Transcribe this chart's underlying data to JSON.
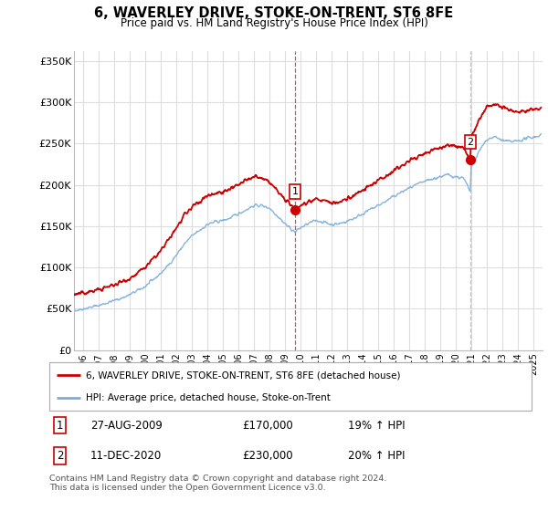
{
  "title": "6, WAVERLEY DRIVE, STOKE-ON-TRENT, ST6 8FE",
  "subtitle": "Price paid vs. HM Land Registry's House Price Index (HPI)",
  "ylabel_ticks": [
    "£0",
    "£50K",
    "£100K",
    "£150K",
    "£200K",
    "£250K",
    "£300K",
    "£350K"
  ],
  "ytick_vals": [
    0,
    50000,
    100000,
    150000,
    200000,
    250000,
    300000,
    350000
  ],
  "ylim": [
    0,
    362000
  ],
  "xlim_start": 1995.4,
  "xlim_end": 2025.6,
  "xtick_years": [
    1996,
    1997,
    1998,
    1999,
    2000,
    2001,
    2002,
    2003,
    2004,
    2005,
    2006,
    2007,
    2008,
    2009,
    2010,
    2011,
    2012,
    2013,
    2014,
    2015,
    2016,
    2017,
    2018,
    2019,
    2020,
    2021,
    2022,
    2023,
    2024,
    2025
  ],
  "sale1_x": 2009.65,
  "sale1_y": 170000,
  "sale1_label": "1",
  "sale2_x": 2020.94,
  "sale2_y": 230000,
  "sale2_label": "2",
  "vline1_x": 2009.65,
  "vline2_x": 2020.94,
  "legend_line1": "6, WAVERLEY DRIVE, STOKE-ON-TRENT, ST6 8FE (detached house)",
  "legend_line2": "HPI: Average price, detached house, Stoke-on-Trent",
  "table_row1": [
    "1",
    "27-AUG-2009",
    "£170,000",
    "19% ↑ HPI"
  ],
  "table_row2": [
    "2",
    "11-DEC-2020",
    "£230,000",
    "20% ↑ HPI"
  ],
  "footer": "Contains HM Land Registry data © Crown copyright and database right 2024.\nThis data is licensed under the Open Government Licence v3.0.",
  "red_color": "#cc0000",
  "blue_color": "#7aaddb",
  "background_color": "#ffffff",
  "grid_color": "#dddddd",
  "hpi_base": [
    [
      1995.0,
      47000
    ],
    [
      1995.5,
      48000
    ],
    [
      1996.0,
      50000
    ],
    [
      1996.5,
      52000
    ],
    [
      1997.0,
      54000
    ],
    [
      1997.5,
      57000
    ],
    [
      1998.0,
      60000
    ],
    [
      1998.5,
      63000
    ],
    [
      1999.0,
      67000
    ],
    [
      1999.5,
      72000
    ],
    [
      2000.0,
      77000
    ],
    [
      2000.5,
      85000
    ],
    [
      2001.0,
      93000
    ],
    [
      2001.5,
      103000
    ],
    [
      2002.0,
      115000
    ],
    [
      2002.5,
      128000
    ],
    [
      2003.0,
      138000
    ],
    [
      2003.5,
      145000
    ],
    [
      2004.0,
      152000
    ],
    [
      2004.5,
      155000
    ],
    [
      2005.0,
      157000
    ],
    [
      2005.5,
      160000
    ],
    [
      2006.0,
      165000
    ],
    [
      2006.5,
      170000
    ],
    [
      2007.0,
      175000
    ],
    [
      2007.5,
      175000
    ],
    [
      2008.0,
      172000
    ],
    [
      2008.5,
      163000
    ],
    [
      2009.0,
      153000
    ],
    [
      2009.5,
      145000
    ],
    [
      2009.65,
      143000
    ],
    [
      2010.0,
      148000
    ],
    [
      2010.5,
      153000
    ],
    [
      2011.0,
      157000
    ],
    [
      2011.5,
      155000
    ],
    [
      2012.0,
      152000
    ],
    [
      2012.5,
      153000
    ],
    [
      2013.0,
      156000
    ],
    [
      2013.5,
      160000
    ],
    [
      2014.0,
      165000
    ],
    [
      2014.5,
      170000
    ],
    [
      2015.0,
      175000
    ],
    [
      2015.5,
      180000
    ],
    [
      2016.0,
      186000
    ],
    [
      2016.5,
      191000
    ],
    [
      2017.0,
      196000
    ],
    [
      2017.5,
      200000
    ],
    [
      2018.0,
      204000
    ],
    [
      2018.5,
      207000
    ],
    [
      2019.0,
      210000
    ],
    [
      2019.5,
      212000
    ],
    [
      2020.0,
      210000
    ],
    [
      2020.5,
      208000
    ],
    [
      2020.94,
      192000
    ],
    [
      2021.0,
      220000
    ],
    [
      2021.5,
      240000
    ],
    [
      2022.0,
      255000
    ],
    [
      2022.5,
      258000
    ],
    [
      2023.0,
      254000
    ],
    [
      2023.5,
      252000
    ],
    [
      2024.0,
      253000
    ],
    [
      2024.5,
      256000
    ],
    [
      2025.0,
      258000
    ],
    [
      2025.5,
      260000
    ]
  ],
  "price_base": [
    [
      1995.0,
      65000
    ],
    [
      1995.5,
      67000
    ],
    [
      1996.0,
      69000
    ],
    [
      1996.5,
      71000
    ],
    [
      1997.0,
      73000
    ],
    [
      1997.5,
      76000
    ],
    [
      1998.0,
      79000
    ],
    [
      1998.5,
      83000
    ],
    [
      1999.0,
      87000
    ],
    [
      1999.5,
      93000
    ],
    [
      2000.0,
      100000
    ],
    [
      2000.5,
      110000
    ],
    [
      2001.0,
      120000
    ],
    [
      2001.5,
      133000
    ],
    [
      2002.0,
      148000
    ],
    [
      2002.5,
      162000
    ],
    [
      2003.0,
      173000
    ],
    [
      2003.5,
      180000
    ],
    [
      2004.0,
      187000
    ],
    [
      2004.5,
      190000
    ],
    [
      2005.0,
      192000
    ],
    [
      2005.5,
      195000
    ],
    [
      2006.0,
      200000
    ],
    [
      2006.5,
      205000
    ],
    [
      2007.0,
      210000
    ],
    [
      2007.5,
      208000
    ],
    [
      2008.0,
      203000
    ],
    [
      2008.5,
      193000
    ],
    [
      2009.0,
      182000
    ],
    [
      2009.5,
      173000
    ],
    [
      2009.65,
      170000
    ],
    [
      2010.0,
      175000
    ],
    [
      2010.5,
      180000
    ],
    [
      2011.0,
      183000
    ],
    [
      2011.5,
      181000
    ],
    [
      2012.0,
      178000
    ],
    [
      2012.5,
      179000
    ],
    [
      2013.0,
      183000
    ],
    [
      2013.5,
      188000
    ],
    [
      2014.0,
      193000
    ],
    [
      2014.5,
      199000
    ],
    [
      2015.0,
      205000
    ],
    [
      2015.5,
      211000
    ],
    [
      2016.0,
      217000
    ],
    [
      2016.5,
      223000
    ],
    [
      2017.0,
      229000
    ],
    [
      2017.5,
      234000
    ],
    [
      2018.0,
      238000
    ],
    [
      2018.5,
      242000
    ],
    [
      2019.0,
      245000
    ],
    [
      2019.5,
      248000
    ],
    [
      2020.0,
      247000
    ],
    [
      2020.5,
      245000
    ],
    [
      2020.94,
      230000
    ],
    [
      2021.0,
      258000
    ],
    [
      2021.5,
      278000
    ],
    [
      2022.0,
      295000
    ],
    [
      2022.5,
      298000
    ],
    [
      2023.0,
      293000
    ],
    [
      2023.5,
      290000
    ],
    [
      2024.0,
      288000
    ],
    [
      2024.5,
      290000
    ],
    [
      2025.0,
      292000
    ],
    [
      2025.5,
      294000
    ]
  ]
}
